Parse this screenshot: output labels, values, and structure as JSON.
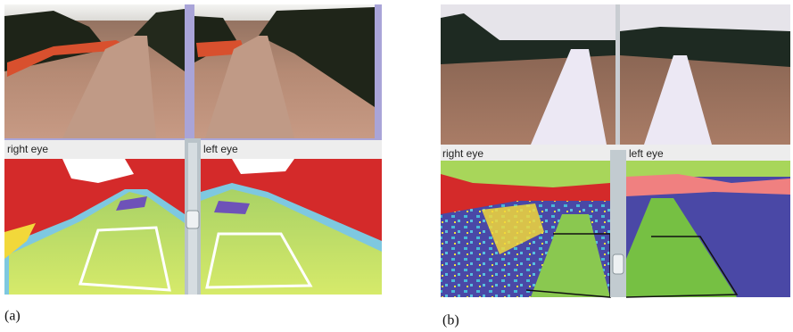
{
  "panels": [
    {
      "label": "(a)",
      "right_view": "right eye",
      "left_view": "left eye"
    },
    {
      "label": "(b)",
      "right_view": "right eye",
      "left_view": "left eye"
    }
  ]
}
